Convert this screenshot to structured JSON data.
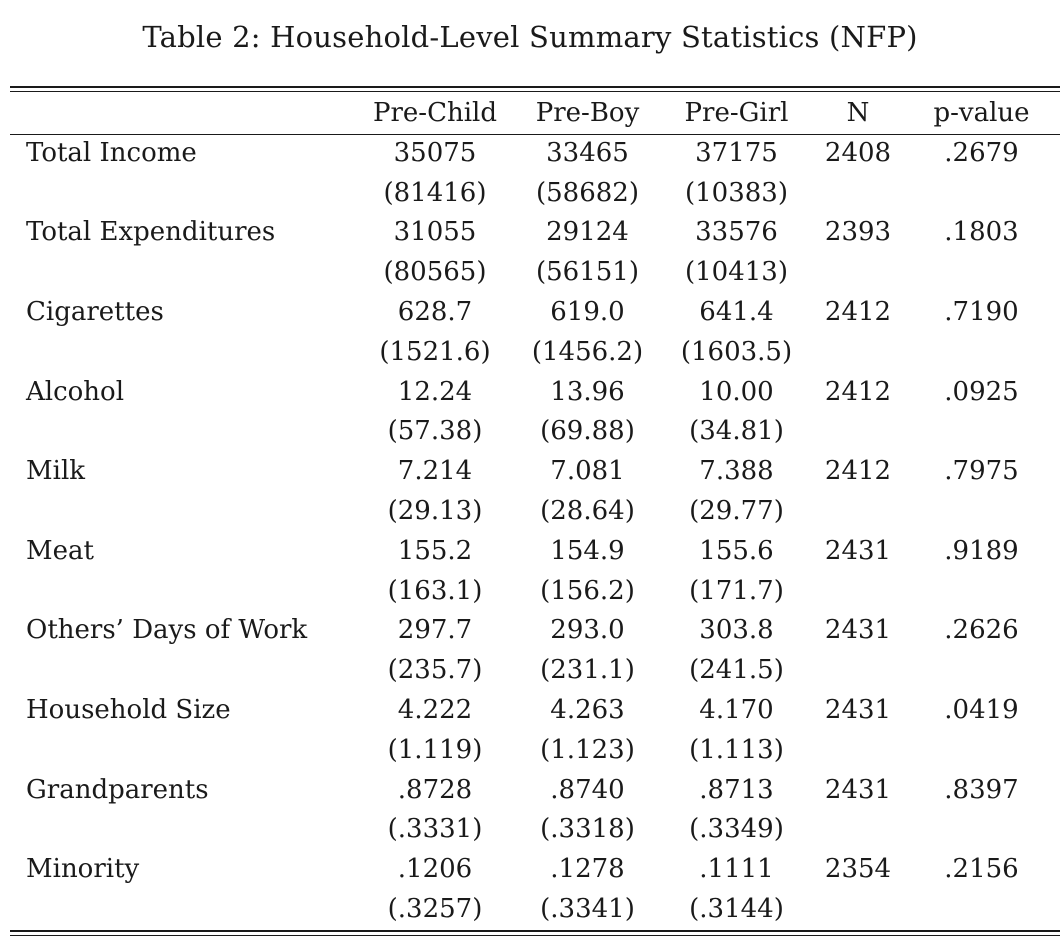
{
  "caption": "Table 2: Household-Level Summary Statistics (NFP)",
  "table": {
    "headers": [
      "",
      "Pre-Child",
      "Pre-Boy",
      "Pre-Girl",
      "N",
      "p-value"
    ],
    "rows": [
      {
        "label": "Total Income",
        "pre_child": "35075",
        "pre_boy": "33465",
        "pre_girl": "37175",
        "n": "2408",
        "p_value": ".2679",
        "se_pre_child": "(81416)",
        "se_pre_boy": "(58682)",
        "se_pre_girl": "(10383)"
      },
      {
        "label": "Total Expenditures",
        "pre_child": "31055",
        "pre_boy": "29124",
        "pre_girl": "33576",
        "n": "2393",
        "p_value": ".1803",
        "se_pre_child": "(80565)",
        "se_pre_boy": "(56151)",
        "se_pre_girl": "(10413)"
      },
      {
        "label": "Cigarettes",
        "pre_child": "628.7",
        "pre_boy": "619.0",
        "pre_girl": "641.4",
        "n": "2412",
        "p_value": ".7190",
        "se_pre_child": "(1521.6)",
        "se_pre_boy": "(1456.2)",
        "se_pre_girl": "(1603.5)"
      },
      {
        "label": "Alcohol",
        "pre_child": "12.24",
        "pre_boy": "13.96",
        "pre_girl": "10.00",
        "n": "2412",
        "p_value": ".0925",
        "se_pre_child": "(57.38)",
        "se_pre_boy": "(69.88)",
        "se_pre_girl": "(34.81)"
      },
      {
        "label": "Milk",
        "pre_child": "7.214",
        "pre_boy": "7.081",
        "pre_girl": "7.388",
        "n": "2412",
        "p_value": ".7975",
        "se_pre_child": "(29.13)",
        "se_pre_boy": "(28.64)",
        "se_pre_girl": "(29.77)"
      },
      {
        "label": "Meat",
        "pre_child": "155.2",
        "pre_boy": "154.9",
        "pre_girl": "155.6",
        "n": "2431",
        "p_value": ".9189",
        "se_pre_child": "(163.1)",
        "se_pre_boy": "(156.2)",
        "se_pre_girl": "(171.7)"
      },
      {
        "label": "Others’ Days of Work",
        "pre_child": "297.7",
        "pre_boy": "293.0",
        "pre_girl": "303.8",
        "n": "2431",
        "p_value": ".2626",
        "se_pre_child": "(235.7)",
        "se_pre_boy": "(231.1)",
        "se_pre_girl": "(241.5)"
      },
      {
        "label": "Household Size",
        "pre_child": "4.222",
        "pre_boy": "4.263",
        "pre_girl": "4.170",
        "n": "2431",
        "p_value": ".0419",
        "se_pre_child": "(1.119)",
        "se_pre_boy": "(1.123)",
        "se_pre_girl": "(1.113)"
      },
      {
        "label": "Grandparents",
        "pre_child": ".8728",
        "pre_boy": ".8740",
        "pre_girl": ".8713",
        "n": "2431",
        "p_value": ".8397",
        "se_pre_child": "(.3331)",
        "se_pre_boy": "(.3318)",
        "se_pre_girl": "(.3349)"
      },
      {
        "label": "Minority",
        "pre_child": ".1206",
        "pre_boy": ".1278",
        "pre_girl": ".1111",
        "n": "2354",
        "p_value": ".2156",
        "se_pre_child": "(.3257)",
        "se_pre_boy": "(.3341)",
        "se_pre_girl": "(.3144)"
      }
    ]
  }
}
